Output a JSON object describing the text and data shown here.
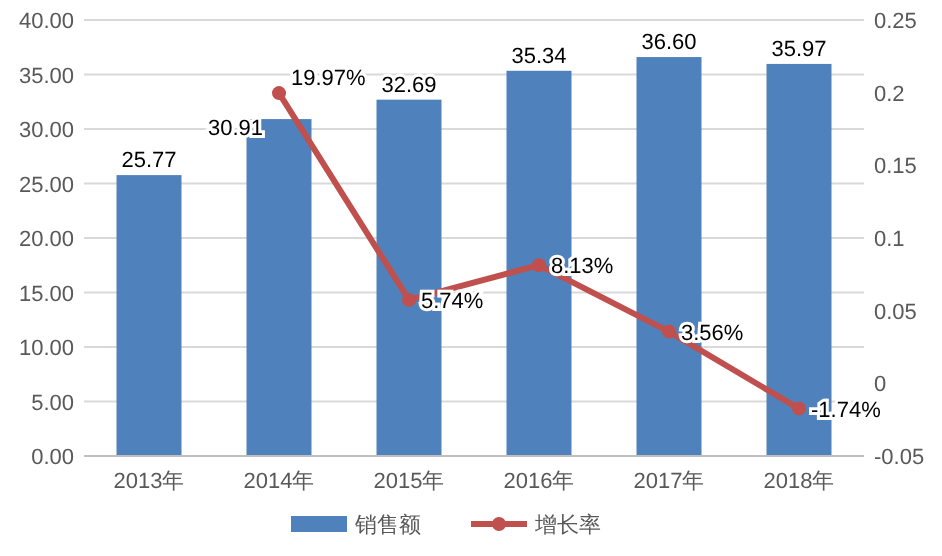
{
  "chart_data": {
    "type": "bar",
    "categories": [
      "2013年",
      "2014年",
      "2015年",
      "2016年",
      "2017年",
      "2018年"
    ],
    "series": [
      {
        "name": "销售额",
        "color": "#4f81bd",
        "values": [
          25.77,
          30.91,
          32.69,
          35.34,
          36.6,
          35.97
        ],
        "value_labels": [
          "25.77",
          "30.91",
          "32.69",
          "35.34",
          "36.60",
          "35.97"
        ]
      },
      {
        "name": "增长率",
        "type": "line",
        "axis": "y2",
        "color": "#c0504d",
        "marker": "circle",
        "values": [
          null,
          0.1997,
          0.0574,
          0.0813,
          0.0356,
          -0.0174
        ],
        "value_labels": [
          null,
          "19.97%",
          "5.74%",
          "8.13%",
          "3.56%",
          "-1.74%"
        ]
      }
    ],
    "ylim": [
      0,
      40
    ],
    "yticks": [
      {
        "value": 0,
        "label": "0.00"
      },
      {
        "value": 5,
        "label": "5.00"
      },
      {
        "value": 10,
        "label": "10.00"
      },
      {
        "value": 15,
        "label": "15.00"
      },
      {
        "value": 20,
        "label": "20.00"
      },
      {
        "value": 25,
        "label": "25.00"
      },
      {
        "value": 30,
        "label": "30.00"
      },
      {
        "value": 35,
        "label": "35.00"
      },
      {
        "value": 40,
        "label": "40.00"
      }
    ],
    "y2lim": [
      -0.05,
      0.25
    ],
    "y2ticks": [
      -0.05,
      0,
      0.05,
      0.1,
      0.15,
      0.2,
      0.25
    ],
    "grid": "y",
    "legend": "bottom"
  }
}
